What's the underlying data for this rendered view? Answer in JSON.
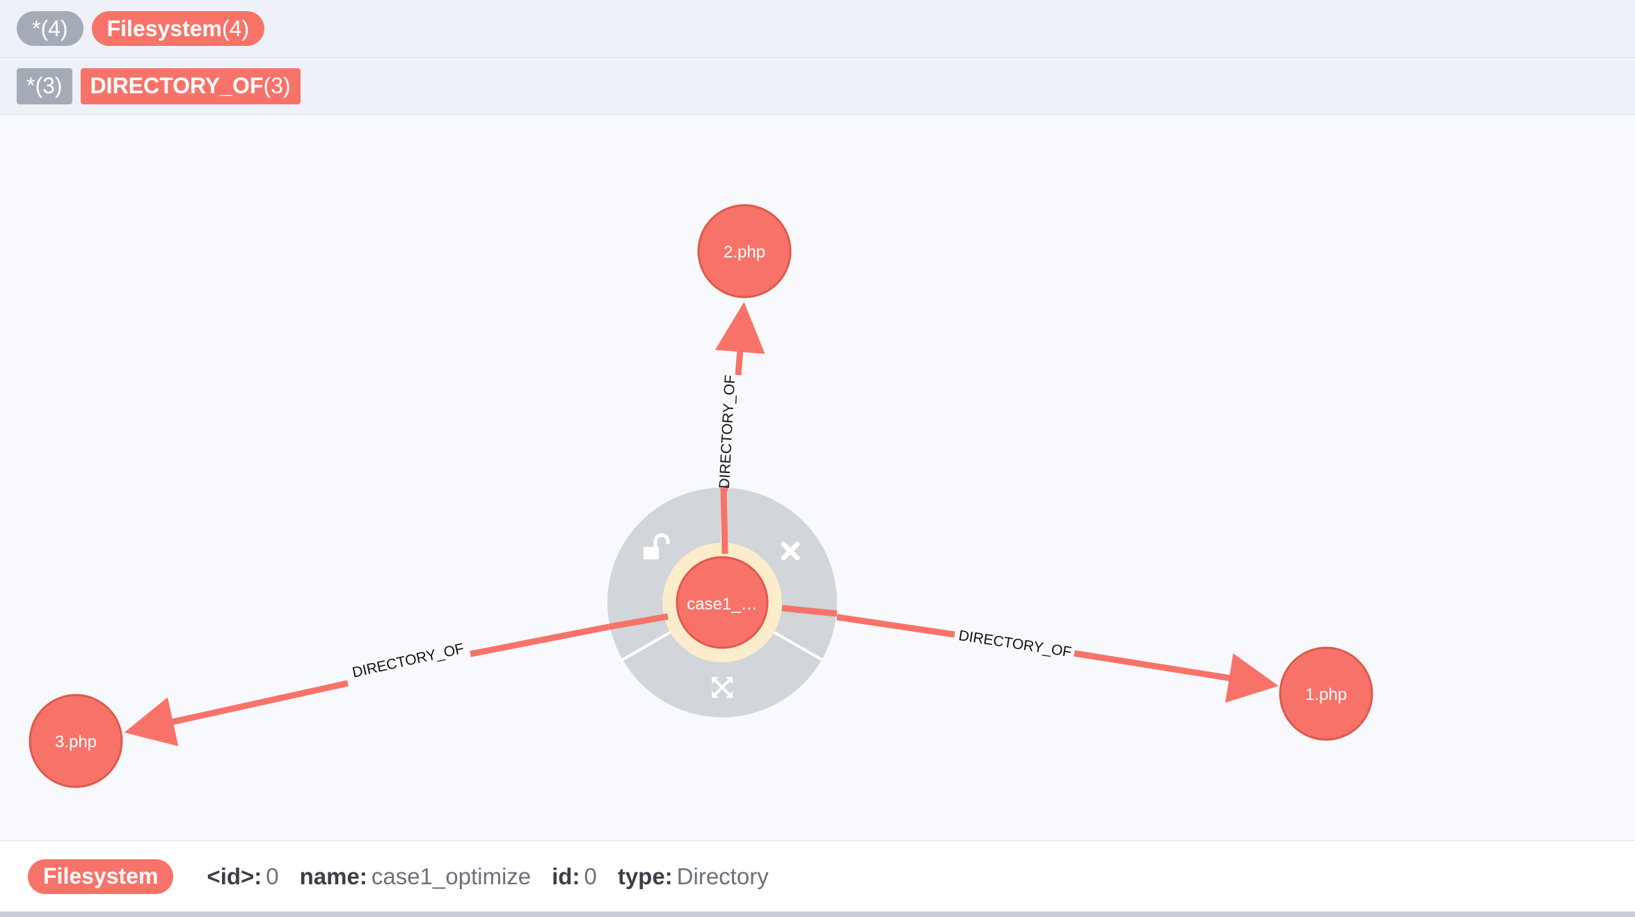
{
  "legend": {
    "node_labels": [
      {
        "name": "*",
        "count": "(4)",
        "style": "grey"
      },
      {
        "name": "Filesystem",
        "count": "(4)",
        "style": "red"
      }
    ],
    "relationship_types": [
      {
        "name": "*",
        "count": "(3)",
        "style": "grey"
      },
      {
        "name": "DIRECTORY_OF",
        "count": "(3)",
        "style": "red"
      }
    ]
  },
  "graph": {
    "nodes": {
      "center": {
        "caption": "case1_…"
      },
      "n1": {
        "caption": "1.php"
      },
      "n2": {
        "caption": "2.php"
      },
      "n3": {
        "caption": "3.php"
      }
    },
    "relationships": {
      "to_n1": {
        "type": "DIRECTORY_OF"
      },
      "to_n2": {
        "type": "DIRECTORY_OF"
      },
      "to_n3": {
        "type": "DIRECTORY_OF"
      }
    },
    "ring_menu": {
      "icons": [
        "unlock-icon",
        "remove-icon",
        "expand-icon"
      ]
    }
  },
  "inspector": {
    "label": "Filesystem",
    "properties": [
      {
        "key": "<id>:",
        "value": "0"
      },
      {
        "key": "name:",
        "value": "case1_optimize"
      },
      {
        "key": "id:",
        "value": "0"
      },
      {
        "key": "type:",
        "value": "Directory"
      }
    ]
  },
  "colors": {
    "node_fill": "#f77369",
    "node_stroke": "#e0584e",
    "rel_color": "#f77369",
    "ring_menu": "#d2d5da",
    "selection_halo": "#fbeccb",
    "legend_grey": "#a5abb6"
  }
}
